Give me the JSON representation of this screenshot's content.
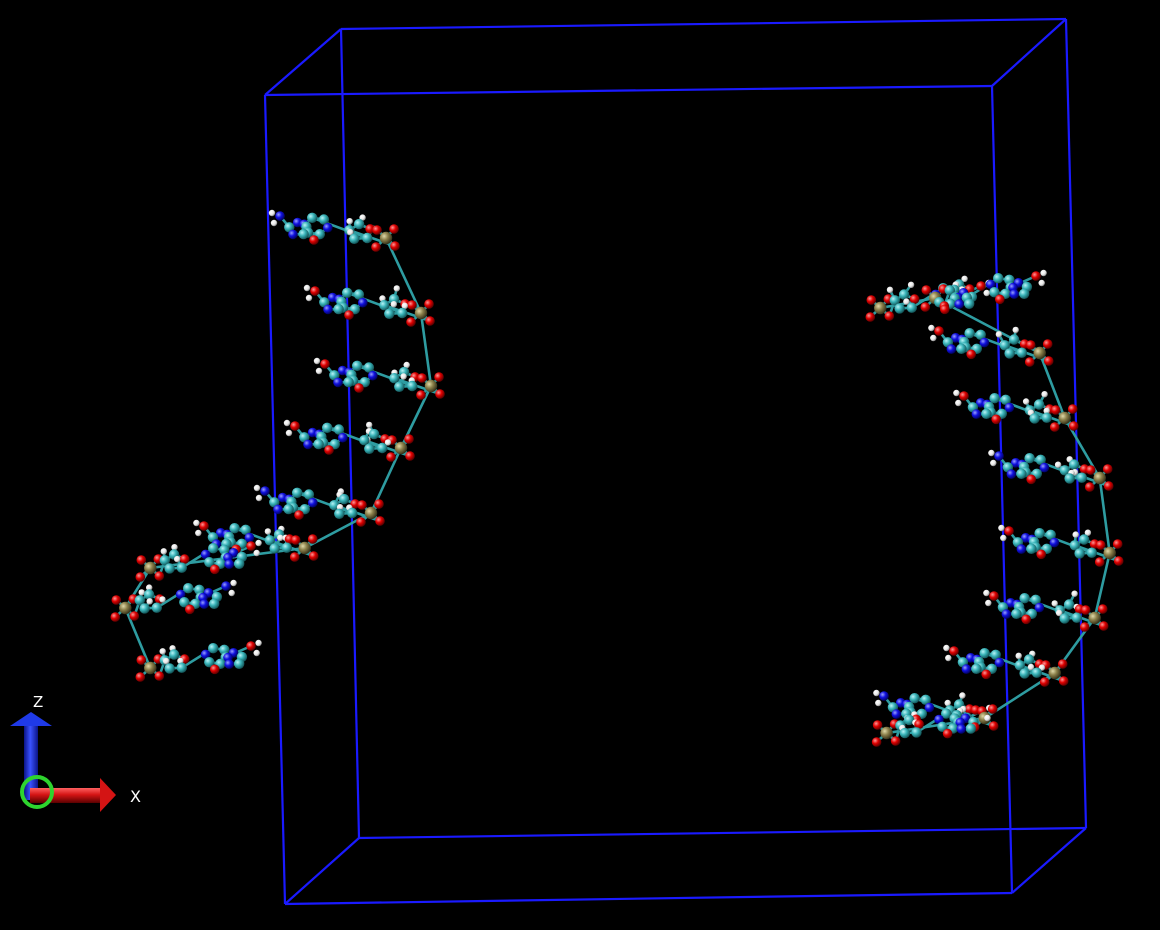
{
  "axes": {
    "z_label": "Z",
    "x_label": "X"
  },
  "colors": {
    "background": "#000000",
    "box": "#1a1aff",
    "carbon": "#38b3b8",
    "oxygen": "#e00000",
    "nitrogen": "#1010e0",
    "hydrogen": "#f2f2f2",
    "phosphorus": "#8a7f4a",
    "bond": "#38b3b8",
    "axis_z": "#1428d6",
    "axis_x": "#d41414",
    "axis_origin": "#2ed42e",
    "axis_text": "#ffffff"
  },
  "icons": {
    "axis_indicator": "xz-axis-triad-icon"
  }
}
